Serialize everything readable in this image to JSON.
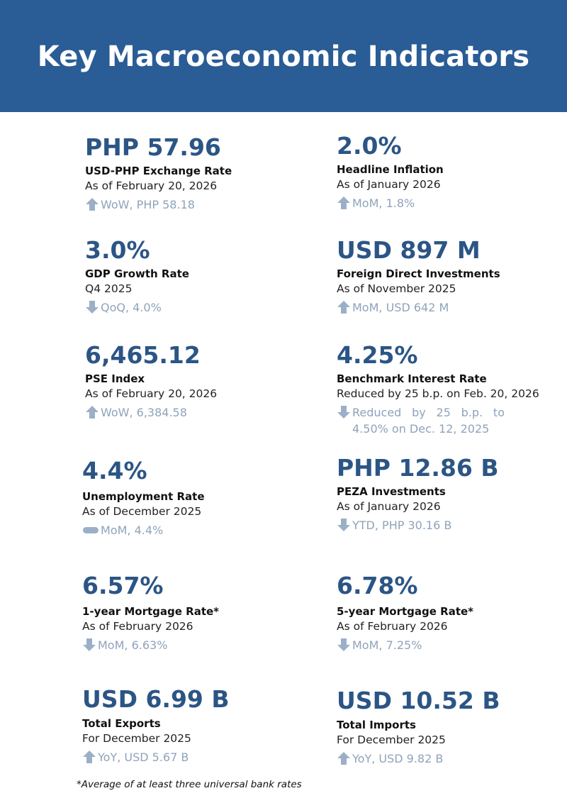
{
  "title": "Key Macroeconomic Indicators",
  "colors": {
    "header_bg": "#2a5c96",
    "value": "#2b5585",
    "change": "#8fa3bb",
    "icon": "#9bb0c6"
  },
  "indicators": [
    {
      "value": "PHP 57.96",
      "label": "USD-PHP Exchange Rate",
      "asof": "As of February 20, 2026",
      "icon": "arrow-up-icon",
      "change": "WoW, PHP 58.18"
    },
    {
      "value": "2.0%",
      "label": "Headline Inflation",
      "asof": "As of January 2026",
      "icon": "arrow-up-icon",
      "change": "MoM, 1.8%"
    },
    {
      "value": "3.0%",
      "label": "GDP Growth Rate",
      "asof": "Q4 2025",
      "icon": "arrow-down-icon",
      "change": "QoQ, 4.0%"
    },
    {
      "value": "USD 897 M",
      "label": "Foreign Direct Investments",
      "asof": "As of November 2025",
      "icon": "arrow-up-icon",
      "change": "MoM, USD 642 M"
    },
    {
      "value": "6,465.12",
      "label": "PSE Index",
      "asof": "As of February 20, 2026",
      "icon": "arrow-up-icon",
      "change": "WoW, 6,384.58"
    },
    {
      "value": "4.25%",
      "label": "Benchmark Interest Rate",
      "asof": "Reduced by 25 b.p. on Feb. 20, 2026",
      "icon": "arrow-down-icon",
      "change": "Reduced by 25 b.p. to 4.50% on Dec. 12, 2025"
    },
    {
      "value": "4.4%",
      "label": "Unemployment Rate",
      "asof": "As of December 2025",
      "icon": "unchanged-pill-icon",
      "change": "MoM, 4.4%"
    },
    {
      "value": "PHP 12.86 B",
      "label": "PEZA Investments",
      "asof": "As of January 2026",
      "icon": "arrow-down-icon",
      "change": "YTD, PHP 30.16 B"
    },
    {
      "value": "6.57%",
      "label": "1-year Mortgage Rate*",
      "asof": "As of February 2026",
      "icon": "arrow-down-icon",
      "change": "MoM, 6.63%"
    },
    {
      "value": "6.78%",
      "label": "5-year Mortgage Rate*",
      "asof": "As of February 2026",
      "icon": "arrow-down-icon",
      "change": "MoM, 7.25%"
    },
    {
      "value": "USD 6.99 B",
      "label": "Total Exports",
      "asof": "For December 2025",
      "icon": "arrow-up-icon",
      "change": "YoY, USD 5.67 B"
    },
    {
      "value": "USD 10.52 B",
      "label": "Total Imports",
      "asof": "For December 2025",
      "icon": "arrow-up-icon",
      "change": "YoY, USD 9.82 B"
    }
  ],
  "footnote": "*Average of at least three universal bank rates"
}
